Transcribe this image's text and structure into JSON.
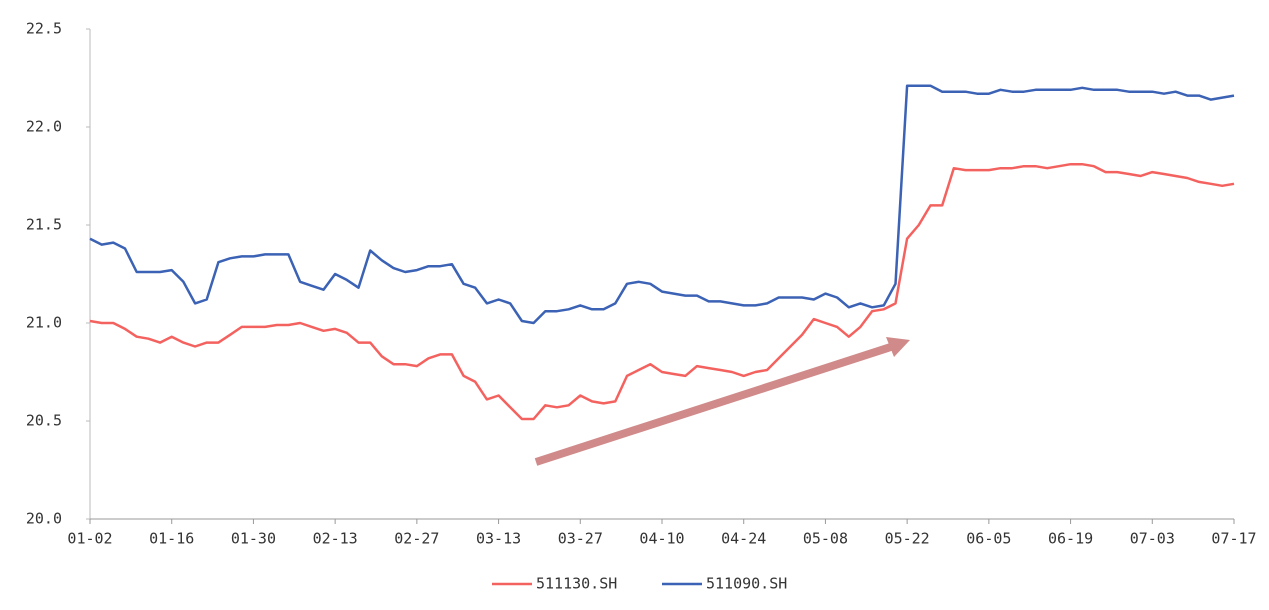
{
  "chart_data": {
    "type": "line",
    "categories": [
      "01-02",
      null,
      null,
      null,
      null,
      null,
      null,
      "01-16",
      null,
      null,
      null,
      null,
      null,
      null,
      "01-30",
      null,
      null,
      null,
      null,
      null,
      null,
      "02-13",
      null,
      null,
      null,
      null,
      null,
      null,
      "02-27",
      null,
      null,
      null,
      null,
      null,
      null,
      "03-13",
      null,
      null,
      null,
      null,
      null,
      null,
      "03-27",
      null,
      null,
      null,
      null,
      null,
      null,
      "04-10",
      null,
      null,
      null,
      null,
      null,
      null,
      "04-24",
      null,
      null,
      null,
      null,
      null,
      null,
      "05-08",
      null,
      null,
      null,
      null,
      null,
      null,
      "05-22",
      null,
      null,
      null,
      null,
      null,
      null,
      "06-05",
      null,
      null,
      null,
      null,
      null,
      null,
      "06-19",
      null,
      null,
      null,
      null,
      null,
      null,
      "07-03",
      null,
      null,
      null,
      null,
      null,
      null,
      "07-17"
    ],
    "series": [
      {
        "name": "511130.SH",
        "color": "#f4625f",
        "values": [
          21.01,
          21.0,
          21.0,
          20.97,
          20.93,
          20.92,
          20.9,
          20.93,
          20.9,
          20.88,
          20.9,
          20.9,
          20.94,
          20.98,
          20.98,
          20.98,
          20.99,
          20.99,
          21.0,
          20.98,
          20.96,
          20.97,
          20.95,
          20.9,
          20.9,
          20.83,
          20.79,
          20.79,
          20.78,
          20.82,
          20.84,
          20.84,
          20.73,
          20.7,
          20.61,
          20.63,
          20.57,
          20.51,
          20.51,
          20.58,
          20.57,
          20.58,
          20.63,
          20.6,
          20.59,
          20.6,
          20.73,
          20.76,
          20.79,
          20.75,
          20.74,
          20.73,
          20.78,
          20.77,
          20.76,
          20.75,
          20.73,
          20.75,
          20.76,
          20.82,
          20.88,
          20.94,
          21.02,
          21.0,
          20.98,
          20.93,
          20.98,
          21.06,
          21.07,
          21.1,
          21.43,
          21.5,
          21.6,
          21.6,
          21.79,
          21.78,
          21.78,
          21.78,
          21.79,
          21.79,
          21.8,
          21.8,
          21.79,
          21.8,
          21.81,
          21.81,
          21.8,
          21.77,
          21.77,
          21.76,
          21.75,
          21.77,
          21.76,
          21.75,
          21.74,
          21.72,
          21.71,
          21.7,
          21.71
        ]
      },
      {
        "name": "511090.SH",
        "color": "#3b62b4",
        "values": [
          21.43,
          21.4,
          21.41,
          21.38,
          21.26,
          21.26,
          21.26,
          21.27,
          21.21,
          21.1,
          21.12,
          21.31,
          21.33,
          21.34,
          21.34,
          21.35,
          21.35,
          21.35,
          21.21,
          21.19,
          21.17,
          21.25,
          21.22,
          21.18,
          21.37,
          21.32,
          21.28,
          21.26,
          21.27,
          21.29,
          21.29,
          21.3,
          21.2,
          21.18,
          21.1,
          21.12,
          21.1,
          21.01,
          21.0,
          21.06,
          21.06,
          21.07,
          21.09,
          21.07,
          21.07,
          21.1,
          21.2,
          21.21,
          21.2,
          21.16,
          21.15,
          21.14,
          21.14,
          21.11,
          21.11,
          21.1,
          21.09,
          21.09,
          21.1,
          21.13,
          21.13,
          21.13,
          21.12,
          21.15,
          21.13,
          21.08,
          21.1,
          21.08,
          21.09,
          21.2,
          22.21,
          22.21,
          22.21,
          22.18,
          22.18,
          22.18,
          22.17,
          22.17,
          22.19,
          22.18,
          22.18,
          22.19,
          22.19,
          22.19,
          22.19,
          22.2,
          22.19,
          22.19,
          22.19,
          22.18,
          22.18,
          22.18,
          22.17,
          22.18,
          22.16,
          22.16,
          22.14,
          22.15,
          22.16
        ]
      }
    ],
    "ylim": [
      20.0,
      22.5
    ],
    "yticks": [
      {
        "value": 20,
        "label": "20.0"
      },
      20.5,
      {
        "value": 21,
        "label": "21.0"
      },
      21.5,
      {
        "value": 22,
        "label": "22.0"
      },
      22.5
    ],
    "grid": false,
    "legend": "bottom"
  }
}
